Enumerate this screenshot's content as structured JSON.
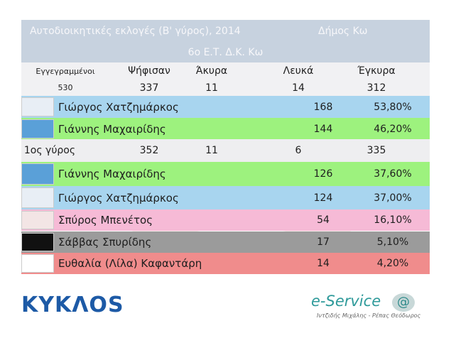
{
  "header": {
    "title": "Αυτοδιοικητικές εκλογές (Β' γύρος), 2014",
    "municipality": "Δήμος Κω",
    "subtitle": "6ο Ε.Τ. Δ.Κ. Κω"
  },
  "second_round": {
    "columns": [
      "Εγγεγραμμένοι",
      "Ψήφισαν",
      "Άκυρα",
      "Λευκά",
      "Έγκυρα"
    ],
    "totals": [
      530,
      337,
      11,
      14,
      312
    ],
    "candidates": [
      {
        "name": "Γιώργος Χατζημάρκος",
        "votes": 168,
        "percent": "53,80%"
      },
      {
        "name": "Γιάννης Μαχαιρίδης",
        "votes": 144,
        "percent": "46,20%"
      }
    ]
  },
  "first_round": {
    "label": "1ος γύρος",
    "totals": [
      352,
      11,
      6,
      335
    ],
    "candidates": [
      {
        "name": "Γιάννης Μαχαιρίδης",
        "votes": 126,
        "percent": "37,60%"
      },
      {
        "name": "Γιώργος Χατζημάρκος",
        "votes": 124,
        "percent": "37,00%"
      },
      {
        "name": "Σπύρος Μπενέτος",
        "votes": 54,
        "percent": "16,10%"
      },
      {
        "name": "Σάββας Σπυρίδης",
        "votes": 17,
        "percent": "5,10%"
      },
      {
        "name": "Ευθαλία (Λίλα) Καφαντάρη",
        "votes": 14,
        "percent": "4,20%"
      }
    ]
  },
  "footer": {
    "logo_left": "ΚΥΚΛΟS",
    "logo_right": "e-Service",
    "logo_symbol": "@",
    "credits": "Ιντζιδής Μιχάλης - Ρέπας Θεόδωρος"
  }
}
